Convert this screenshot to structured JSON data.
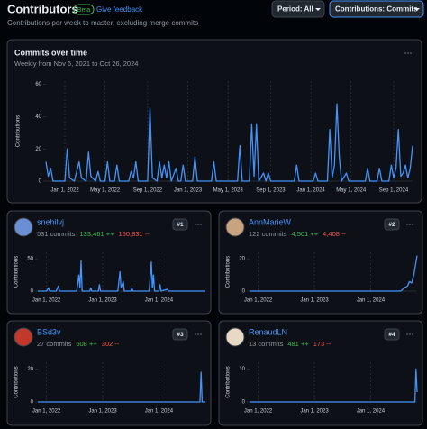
{
  "header": {
    "title": "Contributors",
    "badge": "Beta",
    "feedback": "Give feedback",
    "subtitle": "Contributions per week to master, excluding merge commits",
    "period_button": "Period: All",
    "contributions_button": "Contributions: Commits"
  },
  "main_chart": {
    "type": "line",
    "title": "Commits over time",
    "subtitle": "Weekly from Nov 6, 2021 to Oct 26, 2024",
    "menu": "···",
    "y_label": "Contributions",
    "color": "#4493f8",
    "xlim": [
      0,
      155
    ],
    "ylim": [
      0,
      62
    ],
    "yticks": [
      0,
      20,
      40,
      60
    ],
    "xticks": [
      {
        "value": 8,
        "label": "Jan 1, 2022"
      },
      {
        "value": 25,
        "label": "May 1, 2022"
      },
      {
        "value": 43,
        "label": "Sep 1, 2022"
      },
      {
        "value": 60,
        "label": "Jan 1, 2023"
      },
      {
        "value": 77,
        "label": "May 1, 2023"
      },
      {
        "value": 95,
        "label": "Sep 1, 2023"
      },
      {
        "value": 112,
        "label": "Jan 1, 2024"
      },
      {
        "value": 129,
        "label": "May 1, 2024"
      },
      {
        "value": 147,
        "label": "Sep 1, 2024"
      }
    ],
    "x": [
      0,
      1,
      2,
      3,
      5,
      8,
      9,
      10,
      12,
      14,
      15,
      17,
      18,
      19,
      21,
      22,
      23,
      25,
      26,
      27,
      29,
      30,
      31,
      35,
      36,
      37,
      38,
      39,
      43,
      44,
      45,
      47,
      48,
      49,
      50,
      51,
      52,
      53,
      55,
      56,
      57,
      58,
      59,
      62,
      63,
      64,
      70,
      71,
      72,
      81,
      82,
      83,
      86,
      87,
      88,
      89,
      90,
      92,
      93,
      94,
      95,
      105,
      106,
      107,
      113,
      114,
      115,
      119,
      120,
      121,
      122,
      123,
      124,
      125,
      127,
      128,
      135,
      136,
      137,
      140,
      141,
      142,
      145,
      146,
      147,
      148,
      149,
      150,
      151,
      152,
      153,
      154,
      155
    ],
    "values": [
      12,
      3,
      8,
      0,
      0,
      0,
      20,
      2,
      0,
      12,
      2,
      0,
      18,
      3,
      0,
      6,
      0,
      0,
      12,
      0,
      0,
      10,
      0,
      0,
      6,
      2,
      12,
      0,
      0,
      45,
      2,
      0,
      12,
      2,
      10,
      2,
      12,
      0,
      8,
      0,
      0,
      10,
      0,
      0,
      15,
      0,
      0,
      12,
      0,
      0,
      22,
      0,
      0,
      35,
      3,
      35,
      0,
      5,
      0,
      5,
      0,
      0,
      10,
      0,
      0,
      5,
      0,
      0,
      32,
      2,
      10,
      48,
      15,
      0,
      5,
      0,
      0,
      8,
      0,
      0,
      8,
      0,
      0,
      10,
      2,
      8,
      32,
      3,
      5,
      10,
      2,
      8,
      22
    ]
  },
  "contributors": [
    {
      "name": "snehilvj",
      "commits": "531 commits",
      "additions": "133,461 ++",
      "deletions": "160,831 --",
      "rank": "#1",
      "menu": "···",
      "chart": {
        "type": "line",
        "y_label": "Contributions",
        "color": "#4493f8",
        "xlim": [
          0,
          155
        ],
        "ylim": [
          0,
          60
        ],
        "yticks": [
          0,
          50
        ],
        "xticks": [
          {
            "value": 8,
            "label": "Jan 1, 2022"
          },
          {
            "value": 60,
            "label": "Jan 1, 2023"
          },
          {
            "value": 112,
            "label": "Jan 1, 2024"
          }
        ],
        "x": [
          0,
          8,
          10,
          11,
          17,
          19,
          20,
          36,
          38,
          39,
          40,
          41,
          48,
          49,
          50,
          56,
          57,
          58,
          74,
          76,
          77,
          79,
          80,
          86,
          87,
          88,
          103,
          105,
          106,
          107,
          108,
          112,
          113,
          114,
          120,
          121,
          155
        ],
        "values": [
          0,
          0,
          5,
          0,
          0,
          8,
          0,
          0,
          25,
          5,
          47,
          0,
          0,
          5,
          0,
          0,
          10,
          0,
          0,
          30,
          5,
          15,
          0,
          0,
          5,
          0,
          0,
          45,
          5,
          25,
          0,
          0,
          10,
          0,
          3,
          0,
          0
        ]
      }
    },
    {
      "name": "AnnMarieW",
      "commits": "122 commits",
      "additions": "4,501 ++",
      "deletions": "4,408 --",
      "rank": "#2",
      "menu": "···",
      "chart": {
        "type": "line",
        "y_label": "Contributions",
        "color": "#4493f8",
        "xlim": [
          0,
          155
        ],
        "ylim": [
          0,
          24
        ],
        "yticks": [
          0,
          20
        ],
        "xticks": [
          {
            "value": 8,
            "label": "Jan 1, 2022"
          },
          {
            "value": 60,
            "label": "Jan 1, 2023"
          },
          {
            "value": 112,
            "label": "Jan 1, 2024"
          }
        ],
        "x": [
          0,
          140,
          143,
          146,
          148,
          150,
          152,
          153,
          154,
          155
        ],
        "values": [
          0,
          0,
          2,
          3,
          6,
          5,
          10,
          14,
          18,
          22
        ]
      }
    },
    {
      "name": "BSd3v",
      "commits": "27 commits",
      "additions": "608 ++",
      "deletions": "302 --",
      "rank": "#3",
      "menu": "···",
      "chart": {
        "type": "line",
        "y_label": "Contributions",
        "color": "#4493f8",
        "xlim": [
          0,
          155
        ],
        "ylim": [
          0,
          24
        ],
        "yticks": [
          0,
          20
        ],
        "xticks": [
          {
            "value": 8,
            "label": "Jan 1, 2022"
          },
          {
            "value": 60,
            "label": "Jan 1, 2023"
          },
          {
            "value": 112,
            "label": "Jan 1, 2024"
          }
        ],
        "x": [
          0,
          150,
          151,
          152,
          155
        ],
        "values": [
          0,
          0,
          18,
          0,
          0
        ]
      }
    },
    {
      "name": "RenaudLN",
      "commits": "13 commits",
      "additions": "481 ++",
      "deletions": "173 --",
      "rank": "#4",
      "menu": "···",
      "chart": {
        "type": "line",
        "y_label": "Contributions",
        "color": "#4493f8",
        "xlim": [
          0,
          155
        ],
        "ylim": [
          0,
          12
        ],
        "yticks": [
          0,
          10
        ],
        "xticks": [
          {
            "value": 8,
            "label": "Jan 1, 2022"
          },
          {
            "value": 60,
            "label": "Jan 1, 2023"
          },
          {
            "value": 112,
            "label": "Jan 1, 2024"
          }
        ],
        "x": [
          0,
          153,
          154,
          155
        ],
        "values": [
          0,
          0,
          10,
          3
        ]
      }
    }
  ]
}
